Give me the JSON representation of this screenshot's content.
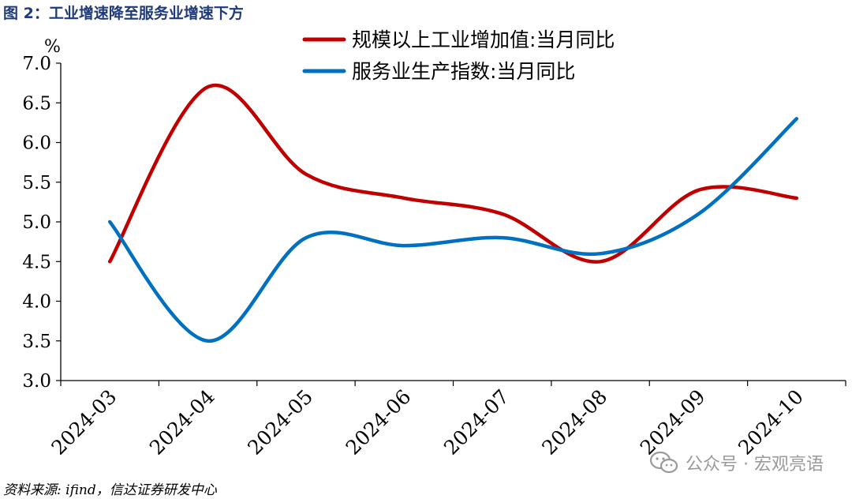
{
  "figure_title": "图 2：工业增速降至服务业增速下方",
  "source": "资料来源: ifind，信达证券研发中心",
  "watermark": "公众号 · 宏观亮语",
  "watermark_icon": "wechat-icon",
  "colors": {
    "industrial": "#c00000",
    "services": "#0070c0",
    "title": "#1f3a7a"
  },
  "chart_data": {
    "type": "line",
    "title": "",
    "ylabel": "%",
    "xlabel": "",
    "ylim": [
      3.0,
      7.0
    ],
    "yticks": [
      "3.0",
      "3.5",
      "4.0",
      "4.5",
      "5.0",
      "5.5",
      "6.0",
      "6.5",
      "7.0"
    ],
    "categories": [
      "2024-03",
      "2024-04",
      "2024-05",
      "2024-06",
      "2024-07",
      "2024-08",
      "2024-09",
      "2024-10"
    ],
    "legend_position": "top-right",
    "grid": false,
    "series": [
      {
        "name": "规模以上工业增加值:当月同比",
        "color": "#c00000",
        "values": [
          4.5,
          6.7,
          5.6,
          5.3,
          5.1,
          4.5,
          5.4,
          5.3
        ]
      },
      {
        "name": "服务业生产指数:当月同比",
        "color": "#0070c0",
        "values": [
          5.0,
          3.5,
          4.8,
          4.7,
          4.8,
          4.6,
          5.1,
          6.3
        ]
      }
    ]
  }
}
